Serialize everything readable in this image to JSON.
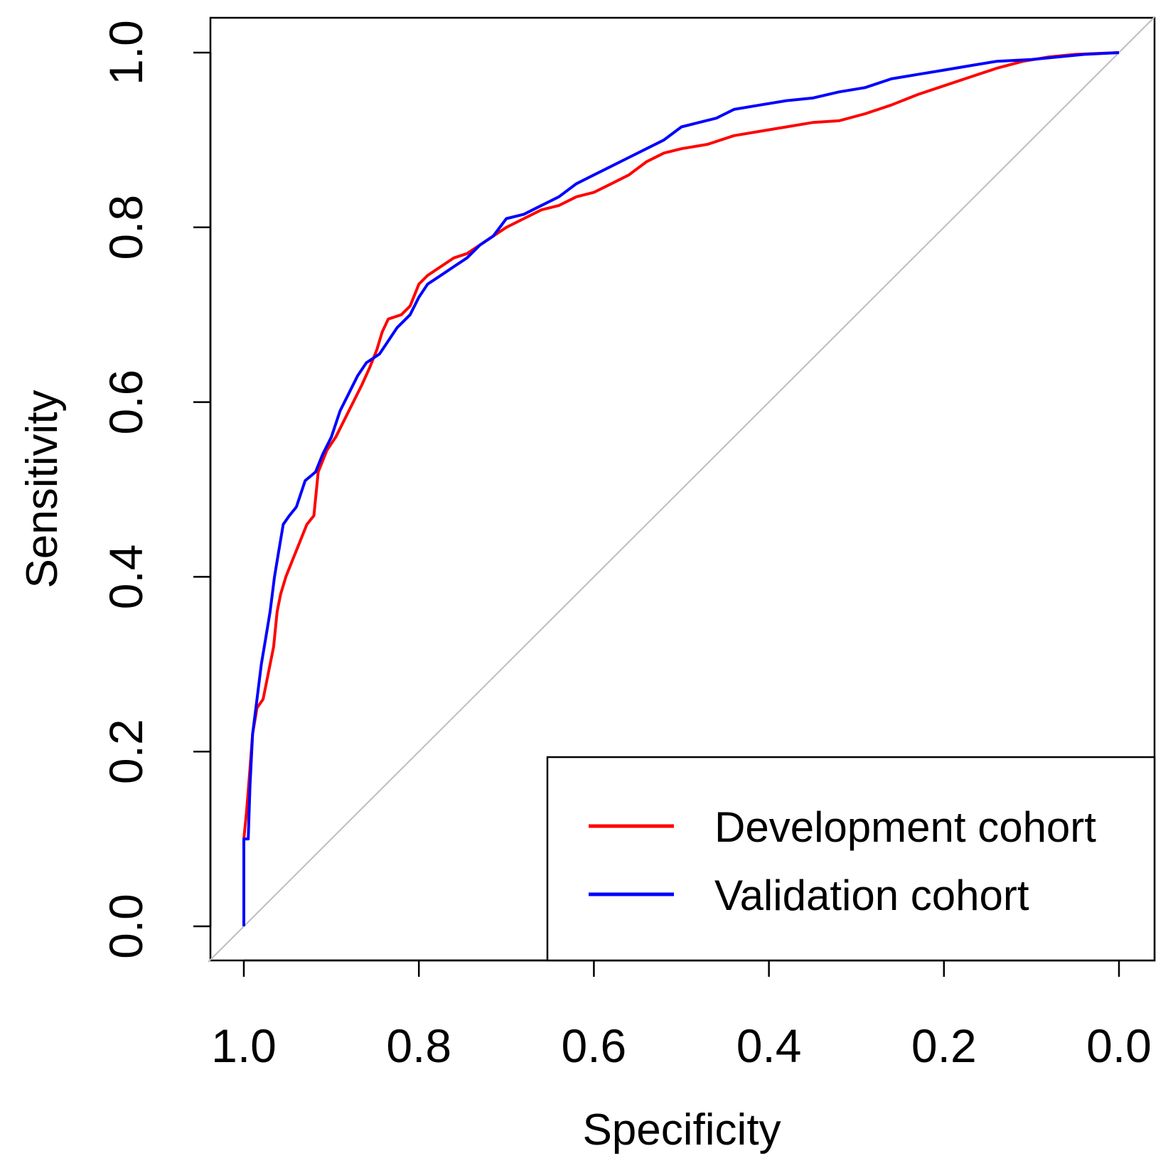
{
  "chart_data": {
    "type": "line",
    "title": "",
    "xlabel": "Specificity",
    "ylabel": "Sensitivity",
    "xlim": [
      1.0,
      0.0
    ],
    "ylim": [
      0.0,
      1.0
    ],
    "x_reversed": true,
    "xticks": [
      "1.0",
      "0.8",
      "0.6",
      "0.4",
      "0.2",
      "0.0"
    ],
    "yticks": [
      "0.0",
      "0.2",
      "0.4",
      "0.6",
      "0.8",
      "1.0"
    ],
    "grid": false,
    "legend_position": "bottom-right",
    "reference_line": {
      "from": [
        1.0,
        0.0
      ],
      "to": [
        0.0,
        1.0
      ],
      "color": "#bebebe"
    },
    "series": [
      {
        "name": "Development cohort",
        "color": "#ff0000",
        "points": [
          [
            1.0,
            0.0
          ],
          [
            1.0,
            0.1
          ],
          [
            0.997,
            0.13
          ],
          [
            0.993,
            0.18
          ],
          [
            0.99,
            0.22
          ],
          [
            0.985,
            0.25
          ],
          [
            0.978,
            0.26
          ],
          [
            0.972,
            0.29
          ],
          [
            0.966,
            0.32
          ],
          [
            0.962,
            0.36
          ],
          [
            0.958,
            0.38
          ],
          [
            0.952,
            0.4
          ],
          [
            0.944,
            0.42
          ],
          [
            0.936,
            0.44
          ],
          [
            0.928,
            0.46
          ],
          [
            0.92,
            0.47
          ],
          [
            0.915,
            0.52
          ],
          [
            0.905,
            0.545
          ],
          [
            0.895,
            0.56
          ],
          [
            0.885,
            0.58
          ],
          [
            0.875,
            0.6
          ],
          [
            0.865,
            0.62
          ],
          [
            0.856,
            0.64
          ],
          [
            0.848,
            0.66
          ],
          [
            0.842,
            0.68
          ],
          [
            0.835,
            0.695
          ],
          [
            0.82,
            0.7
          ],
          [
            0.81,
            0.71
          ],
          [
            0.8,
            0.735
          ],
          [
            0.79,
            0.745
          ],
          [
            0.775,
            0.755
          ],
          [
            0.76,
            0.765
          ],
          [
            0.745,
            0.77
          ],
          [
            0.73,
            0.78
          ],
          [
            0.715,
            0.79
          ],
          [
            0.7,
            0.8
          ],
          [
            0.68,
            0.81
          ],
          [
            0.66,
            0.82
          ],
          [
            0.64,
            0.825
          ],
          [
            0.62,
            0.835
          ],
          [
            0.6,
            0.84
          ],
          [
            0.58,
            0.85
          ],
          [
            0.56,
            0.86
          ],
          [
            0.54,
            0.875
          ],
          [
            0.52,
            0.885
          ],
          [
            0.5,
            0.89
          ],
          [
            0.47,
            0.895
          ],
          [
            0.44,
            0.905
          ],
          [
            0.41,
            0.91
          ],
          [
            0.38,
            0.915
          ],
          [
            0.35,
            0.92
          ],
          [
            0.32,
            0.922
          ],
          [
            0.29,
            0.93
          ],
          [
            0.26,
            0.94
          ],
          [
            0.23,
            0.952
          ],
          [
            0.2,
            0.962
          ],
          [
            0.17,
            0.972
          ],
          [
            0.14,
            0.982
          ],
          [
            0.11,
            0.99
          ],
          [
            0.08,
            0.995
          ],
          [
            0.05,
            0.998
          ],
          [
            0.0,
            1.0
          ]
        ]
      },
      {
        "name": "Validation cohort",
        "color": "#0000ff",
        "points": [
          [
            1.0,
            0.0
          ],
          [
            1.0,
            0.1
          ],
          [
            0.995,
            0.1
          ],
          [
            0.993,
            0.16
          ],
          [
            0.99,
            0.22
          ],
          [
            0.985,
            0.26
          ],
          [
            0.98,
            0.3
          ],
          [
            0.975,
            0.33
          ],
          [
            0.97,
            0.36
          ],
          [
            0.965,
            0.4
          ],
          [
            0.96,
            0.43
          ],
          [
            0.955,
            0.46
          ],
          [
            0.948,
            0.47
          ],
          [
            0.94,
            0.48
          ],
          [
            0.93,
            0.51
          ],
          [
            0.918,
            0.52
          ],
          [
            0.91,
            0.54
          ],
          [
            0.9,
            0.56
          ],
          [
            0.89,
            0.59
          ],
          [
            0.88,
            0.61
          ],
          [
            0.87,
            0.63
          ],
          [
            0.86,
            0.645
          ],
          [
            0.845,
            0.655
          ],
          [
            0.835,
            0.67
          ],
          [
            0.825,
            0.685
          ],
          [
            0.81,
            0.7
          ],
          [
            0.8,
            0.72
          ],
          [
            0.79,
            0.735
          ],
          [
            0.775,
            0.745
          ],
          [
            0.76,
            0.755
          ],
          [
            0.745,
            0.765
          ],
          [
            0.73,
            0.78
          ],
          [
            0.715,
            0.79
          ],
          [
            0.7,
            0.81
          ],
          [
            0.68,
            0.815
          ],
          [
            0.66,
            0.825
          ],
          [
            0.64,
            0.835
          ],
          [
            0.62,
            0.85
          ],
          [
            0.6,
            0.86
          ],
          [
            0.58,
            0.87
          ],
          [
            0.56,
            0.88
          ],
          [
            0.54,
            0.89
          ],
          [
            0.52,
            0.9
          ],
          [
            0.5,
            0.915
          ],
          [
            0.48,
            0.92
          ],
          [
            0.46,
            0.925
          ],
          [
            0.44,
            0.935
          ],
          [
            0.41,
            0.94
          ],
          [
            0.38,
            0.945
          ],
          [
            0.35,
            0.948
          ],
          [
            0.32,
            0.955
          ],
          [
            0.29,
            0.96
          ],
          [
            0.26,
            0.97
          ],
          [
            0.23,
            0.975
          ],
          [
            0.2,
            0.98
          ],
          [
            0.17,
            0.985
          ],
          [
            0.14,
            0.99
          ],
          [
            0.1,
            0.992
          ],
          [
            0.07,
            0.995
          ],
          [
            0.04,
            0.998
          ],
          [
            0.0,
            1.0
          ]
        ]
      }
    ]
  }
}
